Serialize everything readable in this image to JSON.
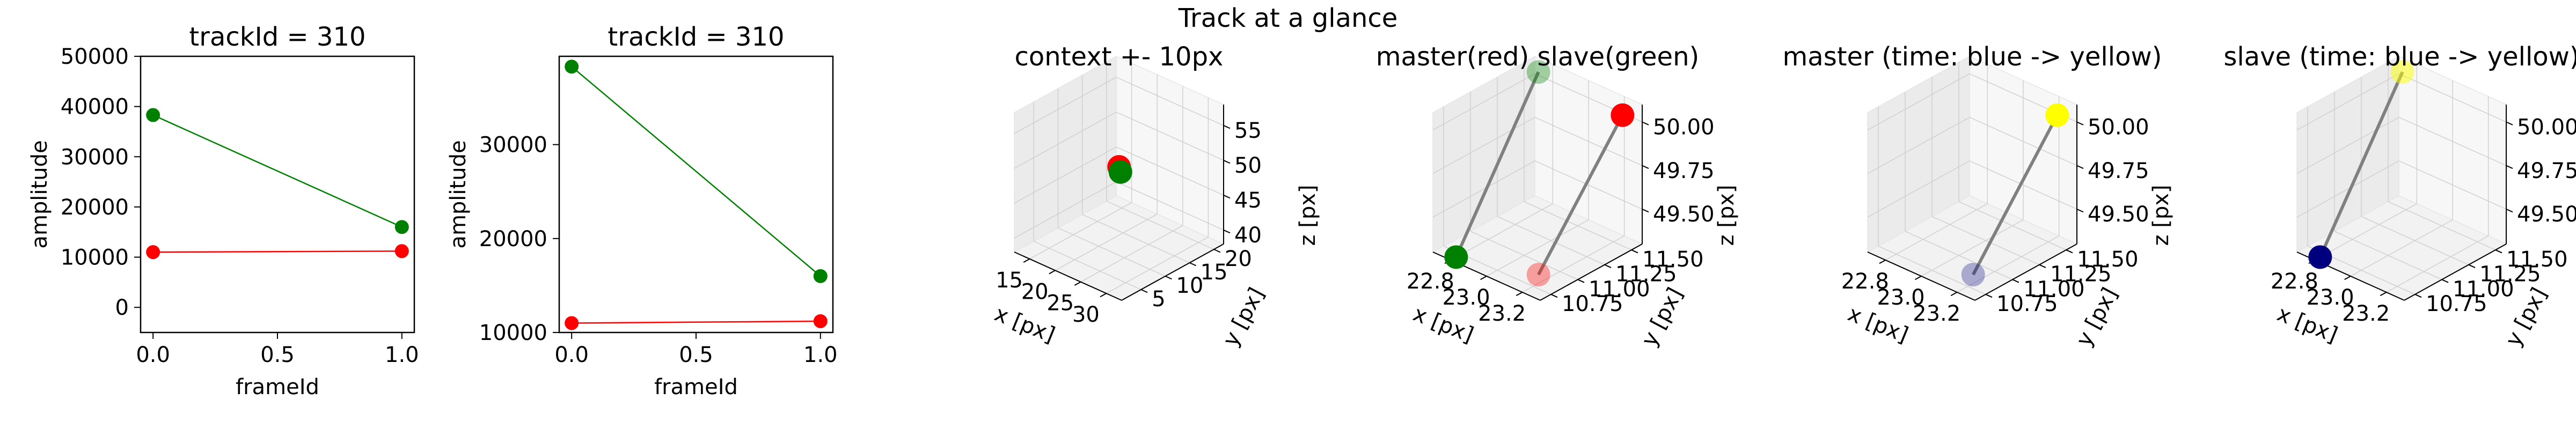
{
  "figure": {
    "suptitle": "Track at a glance"
  },
  "colors": {
    "master": "#ff0000",
    "slave": "#008000",
    "time_start": "#00007f",
    "time_end": "#ffff00",
    "link": "#808080"
  },
  "chart_data": [
    {
      "type": "line",
      "title": "trackId = 310",
      "xlabel": "frameId",
      "ylabel": "amplitude",
      "xlim": [
        -0.05,
        1.05
      ],
      "ylim": [
        -5000,
        50000
      ],
      "xticks": [
        0.0,
        0.5,
        1.0
      ],
      "xticklabels": [
        "0.0",
        "0.5",
        "1.0"
      ],
      "yticks": [
        0,
        10000,
        20000,
        30000,
        40000,
        50000
      ],
      "yticklabels": [
        "0",
        "10000",
        "20000",
        "30000",
        "40000",
        "50000"
      ],
      "x": [
        0,
        1
      ],
      "series": [
        {
          "color": "#008000",
          "values": [
            38300,
            16000
          ]
        },
        {
          "color": "#ff0000",
          "values": [
            11000,
            11200
          ]
        }
      ]
    },
    {
      "type": "line",
      "title": "trackId = 310",
      "xlabel": "frameId",
      "ylabel": "amplitude",
      "xlim": [
        -0.05,
        1.05
      ],
      "ylim": [
        10000,
        39400
      ],
      "xticks": [
        0.0,
        0.5,
        1.0
      ],
      "xticklabels": [
        "0.0",
        "0.5",
        "1.0"
      ],
      "yticks": [
        10000,
        20000,
        30000
      ],
      "yticklabels": [
        "10000",
        "20000",
        "30000"
      ],
      "x": [
        0,
        1
      ],
      "series": [
        {
          "color": "#008000",
          "values": [
            38300,
            16000
          ]
        },
        {
          "color": "#ff0000",
          "values": [
            11000,
            11200
          ]
        }
      ]
    },
    {
      "type": "scatter",
      "title": "context +- 10px",
      "xlabel": "x [px]",
      "ylabel": "y [px]",
      "zlabel": "z [px]",
      "xlim": [
        12,
        33
      ],
      "ylim": [
        1,
        22
      ],
      "zlim": [
        38,
        58
      ],
      "xticks": [
        15,
        20,
        25,
        30
      ],
      "xticklabels": [
        "15",
        "20",
        "25",
        "30"
      ],
      "yticks": [
        5,
        10,
        15,
        20
      ],
      "yticklabels": [
        "5",
        "10",
        "15",
        "20"
      ],
      "zticks": [
        40,
        45,
        50,
        55
      ],
      "zticklabels": [
        "40",
        "45",
        "50",
        "55"
      ],
      "points": [
        {
          "x": 23.0,
          "y": 11.0,
          "z": 50,
          "color": "#ff0000",
          "alpha": 1
        },
        {
          "x": 22.8,
          "y": 11.5,
          "z": 49,
          "color": "#008000",
          "alpha": 1
        }
      ],
      "links": []
    },
    {
      "type": "scatter",
      "title": "master(red) slave(green)",
      "xlabel": "x [px]",
      "ylabel": "y [px]",
      "zlabel": "z [px]",
      "xlim": [
        22.7,
        23.3
      ],
      "ylim": [
        10.65,
        11.6
      ],
      "zlim": [
        49.3,
        50.1
      ],
      "xticks": [
        22.8,
        23.0,
        23.2
      ],
      "xticklabels": [
        "22.8",
        "23.0",
        "23.2"
      ],
      "yticks": [
        10.75,
        11.0,
        11.25,
        11.5
      ],
      "yticklabels": [
        "10.75",
        "11.00",
        "11.25",
        "11.50"
      ],
      "zticks": [
        49.5,
        49.75,
        50.0
      ],
      "zticklabels": [
        "49.50",
        "49.75",
        "50.00"
      ],
      "points": [
        {
          "x": 23.25,
          "y": 11.5,
          "z": 50.05,
          "color": "#ff0000",
          "alpha": 1
        },
        {
          "x": 23.2,
          "y": 10.8,
          "z": 49.35,
          "color": "#ff0000",
          "alpha": 0.35
        },
        {
          "x": 22.75,
          "y": 11.55,
          "z": 50.05,
          "color": "#008000",
          "alpha": 0.35
        },
        {
          "x": 22.8,
          "y": 10.7,
          "z": 49.3,
          "color": "#008000",
          "alpha": 1
        }
      ],
      "links": [
        {
          "from": 0,
          "to": 1
        },
        {
          "from": 2,
          "to": 3
        }
      ]
    },
    {
      "type": "scatter",
      "title": "master (time: blue -> yellow)",
      "xlabel": "x [px]",
      "ylabel": "y [px]",
      "zlabel": "z [px]",
      "xlim": [
        22.7,
        23.3
      ],
      "ylim": [
        10.65,
        11.6
      ],
      "zlim": [
        49.3,
        50.1
      ],
      "xticks": [
        22.8,
        23.0,
        23.2
      ],
      "xticklabels": [
        "22.8",
        "23.0",
        "23.2"
      ],
      "yticks": [
        10.75,
        11.0,
        11.25,
        11.5
      ],
      "yticklabels": [
        "10.75",
        "11.00",
        "11.25",
        "11.50"
      ],
      "zticks": [
        49.5,
        49.75,
        50.0
      ],
      "zticklabels": [
        "49.50",
        "49.75",
        "50.00"
      ],
      "points": [
        {
          "x": 23.25,
          "y": 11.5,
          "z": 50.05,
          "color": "#ffff00",
          "alpha": 1
        },
        {
          "x": 23.2,
          "y": 10.8,
          "z": 49.35,
          "color": "#00007f",
          "alpha": 0.3
        }
      ],
      "links": [
        {
          "from": 0,
          "to": 1
        }
      ]
    },
    {
      "type": "scatter",
      "title": "slave (time: blue -> yellow)",
      "xlabel": "x [px]",
      "ylabel": "y [px]",
      "zlabel": "z [px]",
      "xlim": [
        22.7,
        23.3
      ],
      "ylim": [
        10.65,
        11.6
      ],
      "zlim": [
        49.3,
        50.1
      ],
      "xticks": [
        22.8,
        23.0,
        23.2
      ],
      "xticklabels": [
        "22.8",
        "23.0",
        "23.2"
      ],
      "yticks": [
        10.75,
        11.0,
        11.25,
        11.5
      ],
      "yticklabels": [
        "10.75",
        "11.00",
        "11.25",
        "11.50"
      ],
      "zticks": [
        49.5,
        49.75,
        50.0
      ],
      "zticklabels": [
        "49.50",
        "49.75",
        "50.00"
      ],
      "points": [
        {
          "x": 22.75,
          "y": 11.55,
          "z": 50.05,
          "color": "#ffff00",
          "alpha": 0.5
        },
        {
          "x": 22.8,
          "y": 10.7,
          "z": 49.3,
          "color": "#00007f",
          "alpha": 1
        }
      ],
      "links": [
        {
          "from": 0,
          "to": 1
        }
      ]
    }
  ]
}
